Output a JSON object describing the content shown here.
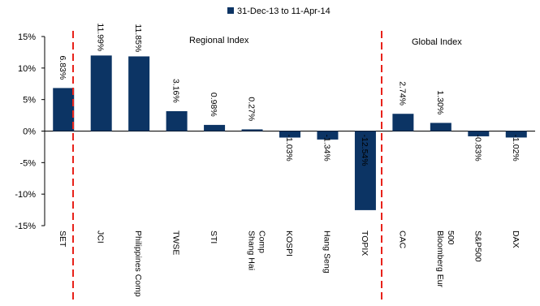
{
  "chart_data": {
    "type": "bar",
    "legend_position": "top",
    "series": [
      {
        "name": "31-Dec-13 to 11-Apr-14",
        "color": "#0c3464",
        "values": [
          6.83,
          11.99,
          11.85,
          3.16,
          0.98,
          0.27,
          -1.03,
          -1.34,
          -12.54,
          2.74,
          1.3,
          -0.83,
          -1.02
        ]
      }
    ],
    "categories": [
      [
        "SET"
      ],
      [
        "JCI"
      ],
      [
        "Philippines Comp"
      ],
      [
        "TWSE"
      ],
      [
        "STI"
      ],
      [
        "Shang Hai",
        "Comp"
      ],
      [
        "KOSPI"
      ],
      [
        "Hang Seng"
      ],
      [
        "TOPIX"
      ],
      [
        "CAC"
      ],
      [
        "Bloomberg Eur",
        "500"
      ],
      [
        "S&P500"
      ],
      [
        "DAX"
      ]
    ],
    "value_labels": [
      "6.83%",
      "11.99%",
      "11.85%",
      "3.16%",
      "0.98%",
      "0.27%",
      "-1.03%",
      "-1.34%",
      "-12.54%",
      "2.74%",
      "1.30%",
      "-0.83%",
      "-1.02%"
    ],
    "y_ticks": [
      "15%",
      "10%",
      "5%",
      "0%",
      "-5%",
      "-10%",
      "-15%"
    ],
    "ylim": [
      -15,
      15
    ],
    "grid": false,
    "sections": [
      {
        "label": "Regional Index"
      },
      {
        "label": "Global Index"
      }
    ],
    "divider_color": "#e8221a"
  }
}
